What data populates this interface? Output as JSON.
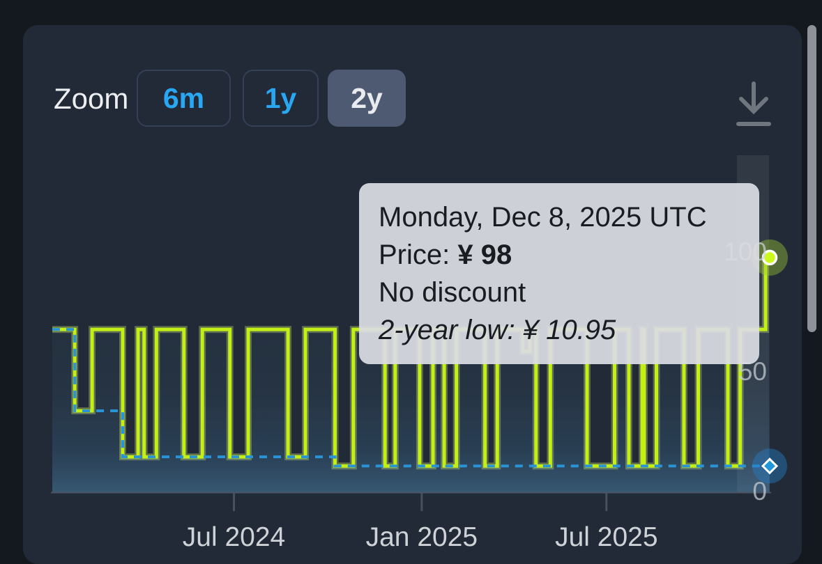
{
  "page": {
    "background": "#14181f",
    "card_background": "#212a36"
  },
  "toolbar": {
    "zoom_label": "Zoom",
    "buttons": [
      {
        "label": "6m",
        "active": false
      },
      {
        "label": "1y",
        "active": false
      },
      {
        "label": "2y",
        "active": true
      }
    ],
    "accent_color": "#2aa7f3",
    "active_bg": "#4d5a72"
  },
  "tooltip": {
    "date_line": "Monday, Dec 8, 2025 UTC",
    "price_label": "Price:",
    "price_value": "¥ 98",
    "discount_line": "No discount",
    "low_line": "2-year low: ¥ 10.95"
  },
  "chart_data": {
    "type": "line",
    "step": true,
    "currency": "¥",
    "legend": "none",
    "grid": false,
    "x_axis": {
      "type": "datetime",
      "range": [
        "2024-01-05",
        "2025-12-08"
      ],
      "ticks": [
        {
          "date": "2024-07-01",
          "label": "Jul 2024"
        },
        {
          "date": "2025-01-01",
          "label": "Jan 2025"
        },
        {
          "date": "2025-07-01",
          "label": "Jul 2025"
        }
      ]
    },
    "y_axis": {
      "range": [
        0,
        140
      ],
      "ticks": [
        {
          "value": 0,
          "label": "0"
        },
        {
          "value": 50,
          "label": "50"
        },
        {
          "value": 100,
          "label": "100"
        }
      ]
    },
    "series": [
      {
        "name": "Price",
        "color": "#c3ee16",
        "points": [
          [
            "2024-01-05",
            68
          ],
          [
            "2024-01-27",
            34
          ],
          [
            "2024-02-13",
            68
          ],
          [
            "2024-03-14",
            14.8
          ],
          [
            "2024-03-29",
            68
          ],
          [
            "2024-04-04",
            14.8
          ],
          [
            "2024-04-16",
            68
          ],
          [
            "2024-05-13",
            14.8
          ],
          [
            "2024-05-31",
            68
          ],
          [
            "2024-06-27",
            14.8
          ],
          [
            "2024-07-15",
            68
          ],
          [
            "2024-08-23",
            14.8
          ],
          [
            "2024-09-09",
            68
          ],
          [
            "2024-10-08",
            10.95
          ],
          [
            "2024-10-26",
            68
          ],
          [
            "2024-11-26",
            10.95
          ],
          [
            "2024-12-06",
            68
          ],
          [
            "2024-12-30",
            10.95
          ],
          [
            "2025-01-12",
            68
          ],
          [
            "2025-01-23",
            10.95
          ],
          [
            "2025-02-04",
            68
          ],
          [
            "2025-03-04",
            10.95
          ],
          [
            "2025-03-16",
            68
          ],
          [
            "2025-04-10",
            58.8
          ],
          [
            "2025-04-17",
            68
          ],
          [
            "2025-04-23",
            10.95
          ],
          [
            "2025-05-07",
            68
          ],
          [
            "2025-06-12",
            10.95
          ],
          [
            "2025-07-09",
            68
          ],
          [
            "2025-07-23",
            10.95
          ],
          [
            "2025-08-05",
            68
          ],
          [
            "2025-08-07",
            10.95
          ],
          [
            "2025-08-19",
            68
          ],
          [
            "2025-09-15",
            10.95
          ],
          [
            "2025-09-29",
            68
          ],
          [
            "2025-10-28",
            10.95
          ],
          [
            "2025-11-09",
            68
          ],
          [
            "2025-12-04",
            98
          ]
        ]
      },
      {
        "name": "2-year low",
        "color": "#2a93d5",
        "dashed": true,
        "points": [
          [
            "2024-01-05",
            68
          ],
          [
            "2024-01-27",
            34
          ],
          [
            "2024-03-14",
            14.8
          ],
          [
            "2024-10-08",
            10.95
          ]
        ]
      }
    ],
    "hover_point": {
      "date": "2025-12-08",
      "price": 98,
      "low": 10.95
    }
  }
}
